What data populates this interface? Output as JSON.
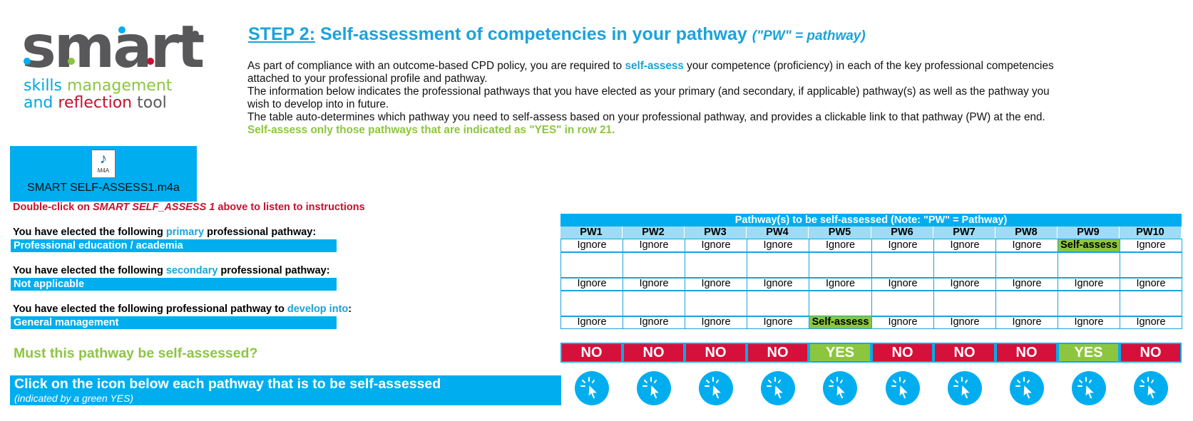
{
  "logo": {
    "word": "smart",
    "line1_a": "skills",
    "line1_b": "management",
    "line2_a": "and",
    "line2_b": "reflection",
    "line2_c": "tool"
  },
  "header": {
    "step": "STEP 2:",
    "title": "Self-assessment of competencies in your pathway",
    "note": "(\"PW\" = pathway)"
  },
  "intro": {
    "p1_a": "As part of compliance with an outcome-based CPD policy, you are required to ",
    "p1_hl": "self-assess",
    "p1_b": " your competence (proficiency) in each of the key professional competencies attached to your professional profile and pathway.",
    "p2": "The information below indicates the professional pathways that you have elected as your primary (and secondary, if applicable) pathway(s) as well as the pathway you wish to develop into in future.",
    "p3_a": "The table auto-determines which pathway you need to self-assess based on your professional pathway, and provides a clickable link to that pathway (PW) at the end. ",
    "p3_hl": "Self-assess only those pathways that are indicated as \"YES\" in row 21."
  },
  "audio": {
    "file_name": "SMART SELF-ASSESS1.m4a",
    "icon_ext": "M4A",
    "icon": "audio-file-icon"
  },
  "listen": {
    "a": "Double-click on ",
    "b": "SMART SELF_ASSESS 1",
    "c": "  above to listen to instructions"
  },
  "primary": {
    "label_a": "You have elected the following ",
    "label_kw": "primary",
    "label_b": " professional pathway:",
    "value": "Professional education / academia"
  },
  "secondary": {
    "label_a": "You have elected the following ",
    "label_kw": "secondary",
    "label_b": " professional pathway:",
    "value": "Not applicable"
  },
  "develop": {
    "label_a": "You have elected the following professional pathway to ",
    "label_kw": "develop into",
    "label_b": ":",
    "value": "General management"
  },
  "must_label": "Must this pathway be self-assessed?",
  "click_box": {
    "title": "Click on the icon below each pathway that is to be self-assessed",
    "subtitle": "(indicated by a green YES)",
    "icon": "cursor-click-icon"
  },
  "table": {
    "title": "Pathway(s) to be self-assessed (Note: \"PW\" = Pathway)",
    "columns": [
      "PW1",
      "PW2",
      "PW3",
      "PW4",
      "PW5",
      "PW6",
      "PW7",
      "PW8",
      "PW9",
      "PW10"
    ],
    "primary_row": [
      "Ignore",
      "Ignore",
      "Ignore",
      "Ignore",
      "Ignore",
      "Ignore",
      "Ignore",
      "Ignore",
      "Self-assess",
      "Ignore"
    ],
    "secondary_row": [
      "Ignore",
      "Ignore",
      "Ignore",
      "Ignore",
      "Ignore",
      "Ignore",
      "Ignore",
      "Ignore",
      "Ignore",
      "Ignore"
    ],
    "develop_row": [
      "Ignore",
      "Ignore",
      "Ignore",
      "Ignore",
      "Self-assess",
      "Ignore",
      "Ignore",
      "Ignore",
      "Ignore",
      "Ignore"
    ],
    "verdicts": [
      "NO",
      "NO",
      "NO",
      "NO",
      "YES",
      "NO",
      "NO",
      "NO",
      "YES",
      "NO"
    ]
  },
  "colors": {
    "accent_blue": "#00aeef",
    "green": "#8cc63f",
    "red": "#d5103a"
  }
}
